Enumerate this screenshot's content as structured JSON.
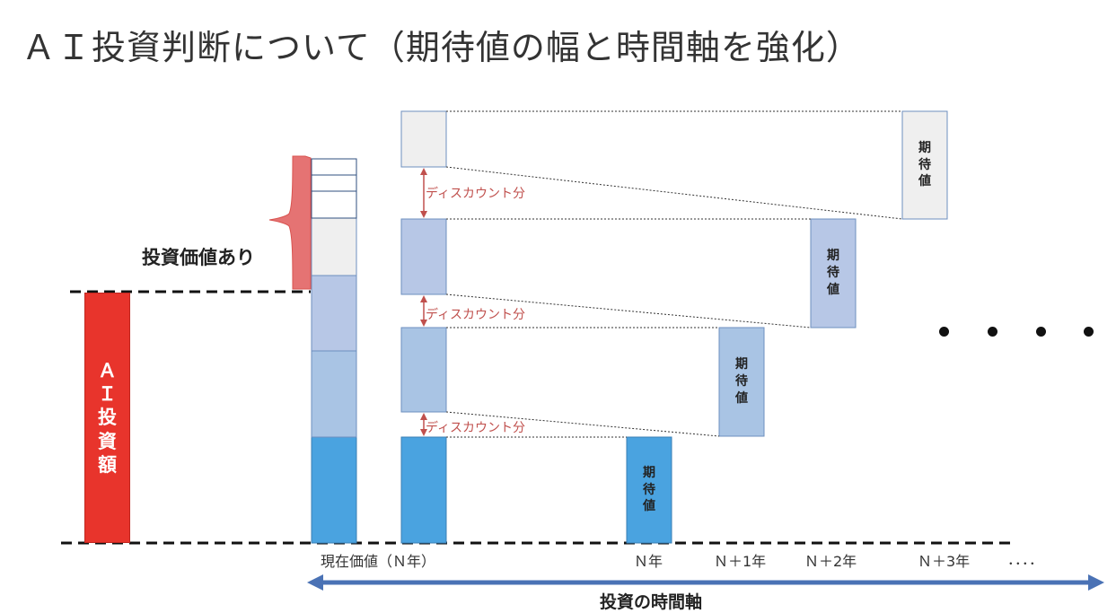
{
  "title": "ＡＩ投資判断について（期待値の幅と時間軸を強化）",
  "valuable_label": "投資価値あり",
  "invest_amount_label": "ＡＩ投資額",
  "expected_value_label": "期待値",
  "discount_label": "ディスカウント分",
  "x_labels": [
    "現在価値（Ｎ年）",
    "Ｎ年",
    "Ｎ＋1年",
    "Ｎ＋2年",
    "Ｎ＋3年",
    "．．．．"
  ],
  "axis_title": "投資の時間軸",
  "ellipsis": "・・・・",
  "colors": {
    "invest_red": "#e8342c",
    "pink_brace": "#e57373",
    "tier1": "#4aa3e0",
    "tier2": "#a9c4e4",
    "tier3": "#b7c7e6",
    "tier4": "#efefef",
    "arrow_blue": "#4a72b5",
    "discount_red": "#c0504d"
  }
}
